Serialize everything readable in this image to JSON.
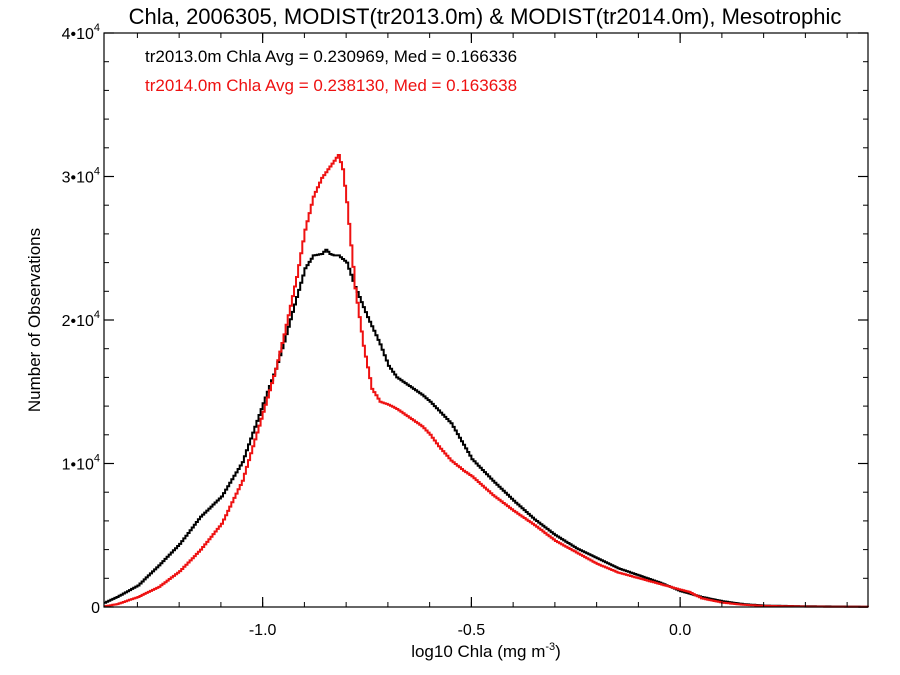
{
  "chart_data": {
    "type": "line",
    "title": "Chla, 2006305, MODIST(tr2013.0m) & MODIST(tr2014.0m), Mesotrophic",
    "xlabel": "log10 Chla (mg m",
    "xlabel_sup": "-3",
    "xlabel_tail": ")",
    "ylabel": "Number of Observations",
    "xlim": [
      -1.38,
      0.45
    ],
    "ylim": [
      0,
      40000
    ],
    "x_ticks": [
      {
        "value": -1.0,
        "label": "-1.0"
      },
      {
        "value": -0.5,
        "label": "-0.5"
      },
      {
        "value": 0.0,
        "label": "0.0"
      }
    ],
    "y_ticks": [
      {
        "value": 0,
        "base": "0",
        "exp": ""
      },
      {
        "value": 10000,
        "base": "1•10",
        "exp": "4"
      },
      {
        "value": 20000,
        "base": "2•10",
        "exp": "4"
      },
      {
        "value": 30000,
        "base": "3•10",
        "exp": "4"
      },
      {
        "value": 40000,
        "base": "4•10",
        "exp": "4"
      }
    ],
    "grid": false,
    "legend_position": "top-left",
    "series": [
      {
        "name": "tr2013.0m Chla Avg = 0.230969, Med = 0.166336",
        "color": "#000000",
        "x": [
          -1.38,
          -1.35,
          -1.3,
          -1.25,
          -1.2,
          -1.15,
          -1.1,
          -1.05,
          -1.0,
          -0.97,
          -0.95,
          -0.92,
          -0.9,
          -0.88,
          -0.86,
          -0.85,
          -0.84,
          -0.83,
          -0.82,
          -0.8,
          -0.78,
          -0.75,
          -0.72,
          -0.7,
          -0.68,
          -0.66,
          -0.64,
          -0.62,
          -0.6,
          -0.58,
          -0.55,
          -0.52,
          -0.5,
          -0.45,
          -0.4,
          -0.35,
          -0.3,
          -0.25,
          -0.2,
          -0.15,
          -0.1,
          -0.05,
          0.0,
          0.05,
          0.1,
          0.15,
          0.2,
          0.3,
          0.45
        ],
        "y": [
          300,
          700,
          1500,
          2900,
          4400,
          6300,
          7700,
          10100,
          14200,
          16600,
          18500,
          21600,
          23600,
          24500,
          24600,
          24900,
          24600,
          24500,
          24500,
          24000,
          22300,
          20200,
          18300,
          16800,
          16000,
          15600,
          15200,
          14800,
          14300,
          13700,
          12800,
          11300,
          10300,
          8800,
          7400,
          6100,
          5000,
          4100,
          3400,
          2700,
          2200,
          1700,
          1100,
          700,
          400,
          200,
          100,
          50,
          20
        ]
      },
      {
        "name": "tr2014.0m Chla Avg = 0.238130, Med = 0.163638",
        "color": "#ee1111",
        "x": [
          -1.38,
          -1.35,
          -1.3,
          -1.25,
          -1.2,
          -1.15,
          -1.1,
          -1.05,
          -1.0,
          -0.97,
          -0.95,
          -0.92,
          -0.9,
          -0.88,
          -0.86,
          -0.85,
          -0.84,
          -0.83,
          -0.82,
          -0.81,
          -0.8,
          -0.79,
          -0.78,
          -0.76,
          -0.74,
          -0.72,
          -0.7,
          -0.68,
          -0.66,
          -0.64,
          -0.62,
          -0.6,
          -0.58,
          -0.55,
          -0.52,
          -0.5,
          -0.45,
          -0.4,
          -0.35,
          -0.3,
          -0.25,
          -0.2,
          -0.15,
          -0.1,
          -0.05,
          0.0,
          0.02,
          0.05,
          0.1,
          0.15,
          0.2,
          0.3,
          0.45
        ],
        "y": [
          50,
          200,
          700,
          1400,
          2500,
          4000,
          5800,
          8800,
          13600,
          16600,
          19000,
          23000,
          26300,
          28600,
          29900,
          30300,
          30700,
          31100,
          31500,
          30500,
          28200,
          25200,
          22200,
          18200,
          15200,
          14300,
          14100,
          13800,
          13400,
          13000,
          12600,
          12000,
          11200,
          10200,
          9500,
          9100,
          7800,
          6700,
          5700,
          4600,
          3800,
          3000,
          2400,
          2000,
          1600,
          1200,
          1050,
          600,
          300,
          150,
          80,
          30,
          10
        ]
      }
    ]
  }
}
